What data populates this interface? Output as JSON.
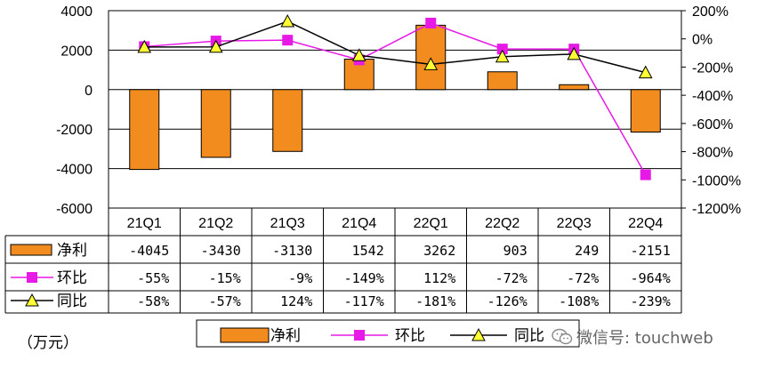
{
  "chart_data": {
    "type": "bar",
    "categories": [
      "21Q1",
      "21Q2",
      "21Q3",
      "21Q4",
      "22Q1",
      "22Q2",
      "22Q3",
      "22Q4"
    ],
    "series": [
      {
        "name": "净利",
        "type": "bar",
        "axis": "left",
        "color": "#F28C1E",
        "values": [
          -4045,
          -3430,
          -3130,
          1542,
          3262,
          903,
          249,
          -2151
        ],
        "labels": [
          "-4045",
          "-3430",
          "-3130",
          "1542",
          "3262",
          "903",
          "249",
          "-2151"
        ]
      },
      {
        "name": "环比",
        "type": "line",
        "axis": "right",
        "color": "#E619E6",
        "values": [
          -55,
          -15,
          -9,
          -149,
          112,
          -72,
          -72,
          -964
        ],
        "labels": [
          "-55%",
          "-15%",
          "-9%",
          "-149%",
          "112%",
          "-72%",
          "-72%",
          "-964%"
        ]
      },
      {
        "name": "同比",
        "type": "line",
        "axis": "right",
        "color": "#000000",
        "marker_color": "#FFFF33",
        "values": [
          -58,
          -57,
          124,
          -117,
          -181,
          -126,
          -108,
          -239
        ],
        "labels": [
          "-58%",
          "-57%",
          "124%",
          "-117%",
          "-181%",
          "-126%",
          "-108%",
          "-239%"
        ]
      }
    ],
    "y_left": {
      "ylim": [
        -6000,
        4000
      ],
      "ticks": [
        4000,
        2000,
        0,
        -2000,
        -4000,
        -6000
      ],
      "tick_labels": [
        "4000",
        "2000",
        "0",
        "-2000",
        "-4000",
        "-6000"
      ]
    },
    "y_right": {
      "ylim": [
        -1200,
        200
      ],
      "ticks": [
        200,
        0,
        -200,
        -400,
        -600,
        -800,
        -1000,
        -1200
      ],
      "tick_labels": [
        "200%",
        "0%",
        "-200%",
        "-400%",
        "-600%",
        "-800%",
        "-1000%",
        "-1200%"
      ]
    },
    "grid": "horizontal",
    "data_table": true,
    "legend_placement": "bottom",
    "unit_label": "（万元）"
  },
  "watermark": {
    "text": "微信号: touchweb",
    "icon": "wechat-icon"
  }
}
